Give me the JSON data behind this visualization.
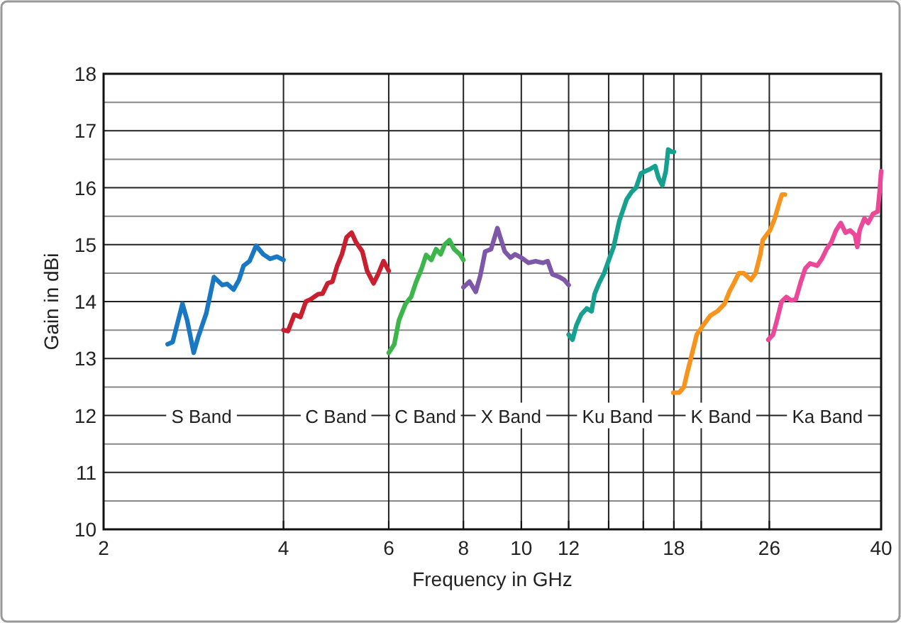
{
  "chart_data": {
    "type": "line",
    "xlabel": "Frequency in GHz",
    "ylabel": "Gain in dBi",
    "log": "x",
    "grid": true,
    "marker": "none",
    "line_style": "solid",
    "xlim": [
      2,
      40
    ],
    "xticks": [
      2,
      4,
      6,
      8,
      10,
      12,
      {
        "value": 14,
        "label": null
      },
      {
        "value": 16,
        "label": null
      },
      18,
      {
        "value": 20,
        "label": null
      },
      26,
      40
    ],
    "ylim": [
      10,
      18
    ],
    "yticks": [
      10,
      {
        "value": 10.5,
        "label": null
      },
      11,
      {
        "value": 11.5,
        "label": null
      },
      12,
      {
        "value": 12.5,
        "label": null
      },
      13,
      {
        "value": 13.5,
        "label": null
      },
      14,
      {
        "value": 14.5,
        "label": null
      },
      15,
      {
        "value": 15.5,
        "label": null
      },
      16,
      {
        "value": 16.5,
        "label": null
      },
      17,
      {
        "value": 17.5,
        "label": null
      },
      18
    ],
    "series": [
      {
        "color": "#1a78c2",
        "x": [
          2.56,
          2.61,
          2.71,
          2.76,
          2.83,
          2.88,
          2.97,
          3.06,
          3.16,
          3.22,
          3.3,
          3.37,
          3.43,
          3.51,
          3.6,
          3.7,
          3.8,
          3.9,
          4.0
        ],
        "values": [
          13.25,
          13.29,
          13.96,
          13.67,
          13.1,
          13.38,
          13.79,
          14.43,
          14.29,
          14.31,
          14.21,
          14.38,
          14.63,
          14.71,
          14.98,
          14.83,
          14.75,
          14.79,
          14.73
        ]
      },
      {
        "color": "#c8202f",
        "x": [
          4.0,
          4.07,
          4.17,
          4.27,
          4.36,
          4.44,
          4.57,
          4.65,
          4.74,
          4.83,
          4.92,
          5.01,
          5.1,
          5.2,
          5.29,
          5.42,
          5.52,
          5.66,
          5.77,
          5.88,
          6.0
        ],
        "values": [
          13.5,
          13.48,
          13.77,
          13.73,
          14.0,
          14.04,
          14.13,
          14.14,
          14.32,
          14.35,
          14.63,
          14.83,
          15.13,
          15.21,
          15.04,
          14.88,
          14.54,
          14.32,
          14.5,
          14.71,
          14.54
        ]
      },
      {
        "color": "#3cb54a",
        "x": [
          6.0,
          6.13,
          6.24,
          6.4,
          6.54,
          6.66,
          6.81,
          6.93,
          7.07,
          7.2,
          7.33,
          7.44,
          7.58,
          7.72,
          7.89,
          8.0
        ],
        "values": [
          13.1,
          13.25,
          13.67,
          13.96,
          14.08,
          14.33,
          14.58,
          14.82,
          14.73,
          14.92,
          14.83,
          15.0,
          15.08,
          14.92,
          14.83,
          14.73
        ]
      },
      {
        "color": "#7e57a8",
        "x": [
          8.0,
          8.19,
          8.39,
          8.54,
          8.7,
          8.9,
          9.12,
          9.38,
          9.59,
          9.76,
          10.0,
          10.28,
          10.57,
          10.86,
          11.07,
          11.27,
          11.59,
          11.8,
          12.0
        ],
        "values": [
          14.25,
          14.35,
          14.17,
          14.46,
          14.88,
          14.92,
          15.29,
          14.88,
          14.77,
          14.83,
          14.77,
          14.68,
          14.71,
          14.68,
          14.71,
          14.48,
          14.43,
          14.38,
          14.29
        ]
      },
      {
        "color": "#16a08f",
        "x": [
          12.0,
          12.18,
          12.36,
          12.59,
          12.87,
          13.11,
          13.26,
          13.5,
          13.76,
          14.01,
          14.27,
          14.59,
          15.0,
          15.28,
          15.56,
          15.85,
          16.14,
          16.44,
          16.75,
          16.97,
          17.22,
          17.45,
          17.61,
          17.86,
          18.0
        ],
        "values": [
          13.42,
          13.33,
          13.58,
          13.77,
          13.88,
          13.83,
          14.13,
          14.33,
          14.5,
          14.73,
          14.96,
          15.42,
          15.79,
          15.92,
          16.0,
          16.25,
          16.29,
          16.33,
          16.38,
          16.17,
          16.04,
          16.29,
          16.67,
          16.63,
          16.63
        ]
      },
      {
        "color": "#f7941d",
        "x": [
          17.96,
          18.37,
          18.71,
          18.95,
          19.3,
          19.66,
          20.14,
          20.7,
          21.28,
          21.88,
          22.28,
          22.7,
          23.12,
          23.55,
          24.21,
          24.66,
          25.12,
          25.35,
          26.06,
          26.55,
          27.04,
          27.3,
          27.6
        ],
        "values": [
          12.4,
          12.4,
          12.5,
          12.75,
          13.08,
          13.42,
          13.58,
          13.75,
          13.83,
          13.96,
          14.17,
          14.33,
          14.5,
          14.5,
          14.38,
          14.5,
          14.83,
          15.08,
          15.25,
          15.46,
          15.75,
          15.88,
          15.88
        ]
      },
      {
        "color": "#ec4899",
        "x": [
          25.9,
          26.38,
          26.77,
          27.26,
          27.76,
          28.27,
          28.79,
          29.32,
          29.86,
          30.41,
          31.26,
          31.83,
          32.42,
          33.01,
          33.62,
          34.24,
          34.87,
          35.51,
          36.16,
          36.49,
          36.82,
          37.5,
          38.05,
          38.76,
          39.47,
          39.76,
          40.0
        ],
        "values": [
          13.33,
          13.42,
          13.67,
          14.0,
          14.08,
          14.02,
          14.04,
          14.33,
          14.58,
          14.67,
          14.63,
          14.75,
          14.92,
          15.04,
          15.25,
          15.38,
          15.21,
          15.25,
          15.17,
          14.96,
          15.25,
          15.46,
          15.38,
          15.54,
          15.58,
          15.92,
          16.29
        ]
      }
    ],
    "annotations": [
      "S Band",
      "C Band",
      "C Band",
      "X Band",
      "Ku Band",
      "K Band",
      "Ka Band"
    ]
  }
}
